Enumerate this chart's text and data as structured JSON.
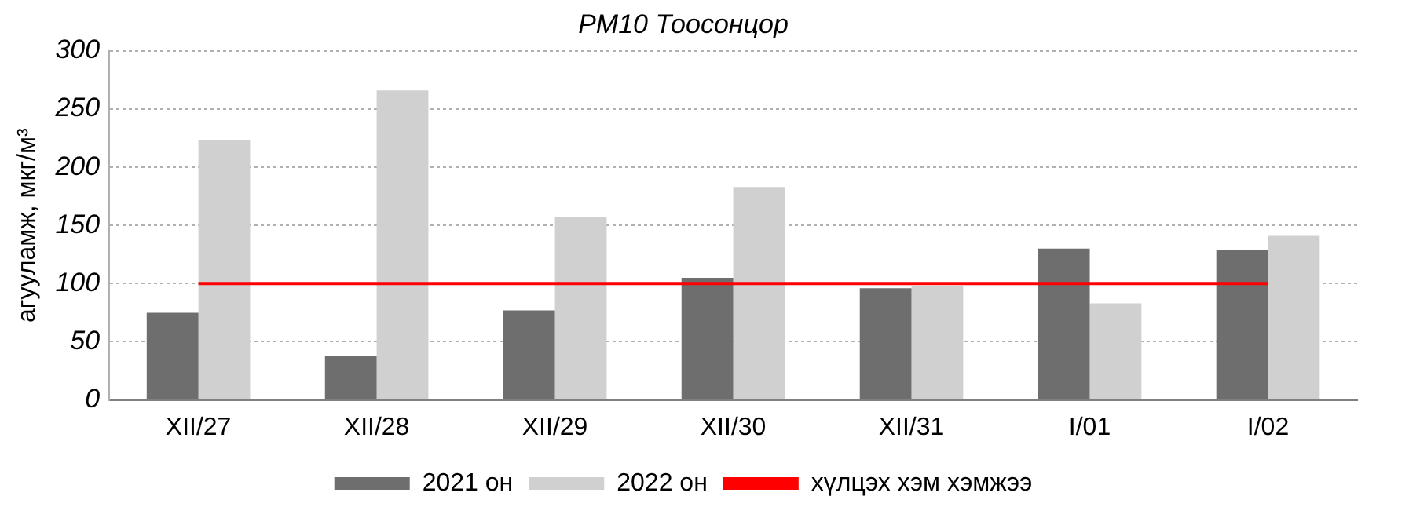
{
  "chart_data": {
    "type": "bar",
    "title": "PM10 Тоосонцор",
    "ylabel": "агууламж, мкг/м³",
    "categories": [
      "XII/27",
      "XII/28",
      "XII/29",
      "XII/30",
      "XII/31",
      "I/01",
      "I/02"
    ],
    "series": [
      {
        "name": "2021 он",
        "color": "#6e6e6e",
        "values": [
          75,
          38,
          77,
          105,
          96,
          130,
          129
        ]
      },
      {
        "name": "2022 он",
        "color": "#d0d0d0",
        "values": [
          223,
          266,
          157,
          183,
          98,
          83,
          141
        ]
      },
      {
        "name": "хүлцэх хэм хэмжээ",
        "type": "line",
        "color": "#ff0000",
        "marker": "none",
        "values": [
          100,
          100,
          100,
          100,
          100,
          100,
          100
        ]
      }
    ],
    "ylim": [
      0,
      300
    ],
    "yticks": [
      0,
      50,
      100,
      150,
      200,
      250,
      300
    ],
    "grid": "y",
    "legend": "bottom"
  }
}
